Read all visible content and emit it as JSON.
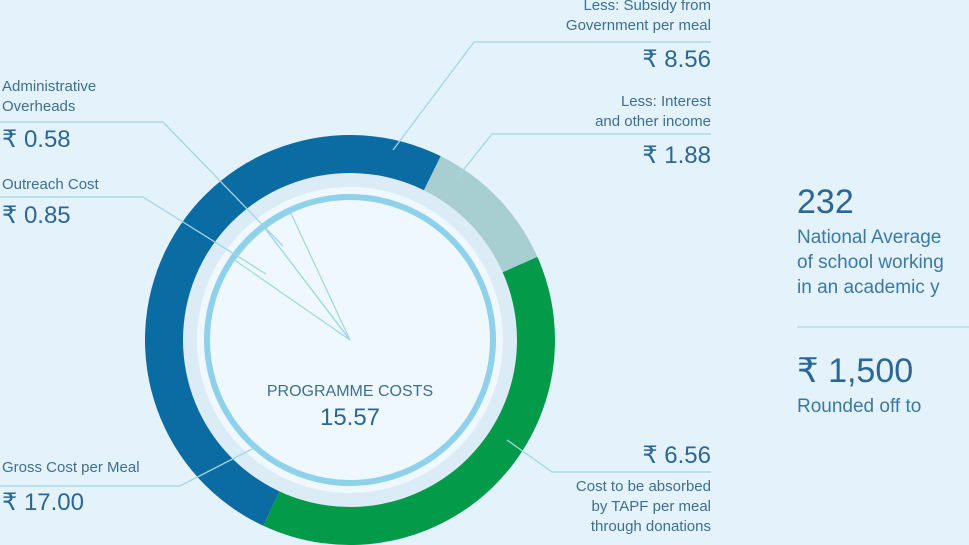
{
  "chart_data": {
    "type": "donut",
    "categories": [
      "Less: Subsidy from\nGovernment per meal",
      "Less: Interest\nand other income",
      "Cost to be absorbed\nby TAPF per meal\nthrough donations"
    ],
    "values": [
      8.56,
      1.88,
      6.56
    ],
    "value_labels": [
      "₹ 8.56",
      "₹ 1.88",
      "₹ 6.56"
    ],
    "colors": [
      "#0b6ba3",
      "#a7cfd2",
      "#039a49"
    ],
    "center_label": "PROGRAMME COSTS",
    "center_value": 15.57,
    "total": {
      "label": "Gross Cost per Meal",
      "value": 17,
      "value_label": "₹ 17.00"
    },
    "programme_costs": [
      {
        "label": "Administrative\nOverheads",
        "value": 0.58,
        "value_label": "₹ 0.58"
      },
      {
        "label": "Outreach Cost",
        "value": 0.85,
        "value_label": "₹ 0.85"
      }
    ]
  },
  "side_panel": {
    "stats": [
      {
        "value": "232",
        "text": "National Average\nof school working\nin an academic y"
      },
      {
        "value": "₹ 1,500",
        "text": "Rounded off to"
      }
    ]
  }
}
